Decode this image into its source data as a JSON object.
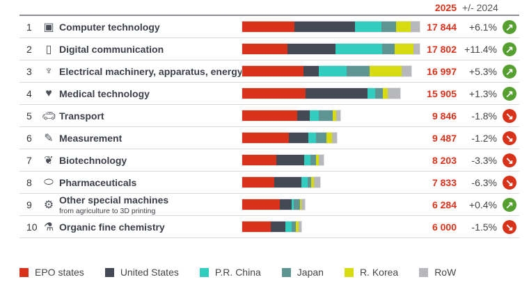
{
  "header": {
    "year": "2025",
    "change": "+/- 2024"
  },
  "colors": {
    "EPO states": "#d9321a",
    "United States": "#434a56",
    "P.R. China": "#32cdbf",
    "Japan": "#5e9593",
    "R. Korea": "#d6db12",
    "RoW": "#b6b8bb",
    "up": "#55a02e",
    "down": "#d9321a"
  },
  "chart_data": {
    "type": "bar",
    "orientation": "horizontal-stacked",
    "series_names": [
      "EPO states",
      "United States",
      "P.R. China",
      "Japan",
      "R. Korea",
      "RoW"
    ],
    "rows": [
      {
        "rank": "1",
        "icon": "computer-chip-icon",
        "label": "Computer technology",
        "sub": "",
        "total": "17 844",
        "change": "+6.1%",
        "trend": "up",
        "values": [
          5263,
          6102,
          2656,
          1468,
          1468,
          887
        ]
      },
      {
        "rank": "2",
        "icon": "phone-icon",
        "label": "Digital communication",
        "sub": "",
        "total": "17 802",
        "change": "+11.4%",
        "trend": "up",
        "values": [
          4544,
          4844,
          4704,
          1237,
          1908,
          580
        ]
      },
      {
        "rank": "3",
        "icon": "power-pylon-icon",
        "label": "Electrical machinery, apparatus, energy",
        "sub": "",
        "total": "16 997",
        "change": "+5.3%",
        "trend": "up",
        "values": [
          6130,
          1587,
          2747,
          2377,
          3166,
          1000
        ]
      },
      {
        "rank": "4",
        "icon": "heart-icon",
        "label": "Medical technology",
        "sub": "",
        "total": "15 905",
        "change": "+1.3%",
        "trend": "up",
        "values": [
          6340,
          6291,
          748,
          769,
          489,
          1279
        ]
      },
      {
        "rank": "5",
        "icon": "car-icon",
        "label": "Transport",
        "sub": "",
        "total": "9 846",
        "change": "-1.8%",
        "trend": "down",
        "values": [
          5501,
          1258,
          958,
          1377,
          350,
          419
        ]
      },
      {
        "rank": "6",
        "icon": "pen-icon",
        "label": "Measurement",
        "sub": "",
        "total": "9 487",
        "change": "-1.2%",
        "trend": "down",
        "values": [
          4704,
          1978,
          720,
          1097,
          538,
          468
        ]
      },
      {
        "rank": "7",
        "icon": "leaf-icon",
        "label": "Biotechnology",
        "sub": "",
        "total": "8 203",
        "change": "-3.3%",
        "trend": "down",
        "values": [
          3446,
          2796,
          650,
          510,
          301,
          510
        ]
      },
      {
        "rank": "8",
        "icon": "pill-icon",
        "label": "Pharmaceuticals",
        "sub": "",
        "total": "7 833",
        "change": "-6.3%",
        "trend": "down",
        "values": [
          3236,
          2747,
          608,
          350,
          259,
          629
        ]
      },
      {
        "rank": "9",
        "icon": "gears-icon",
        "label": "Other special machines",
        "sub": "from agriculture to 3D printing",
        "total": "6 284",
        "change": "+0.4%",
        "trend": "up",
        "values": [
          3775,
          1167,
          259,
          629,
          91,
          370
        ]
      },
      {
        "rank": "10",
        "icon": "flask-icon",
        "label": "Organic fine chemistry",
        "sub": "",
        "total": "6 000",
        "change": "-1.5%",
        "trend": "down",
        "values": [
          2887,
          1447,
          650,
          419,
          301,
          280
        ]
      }
    ],
    "scale_max": 17844
  }
}
